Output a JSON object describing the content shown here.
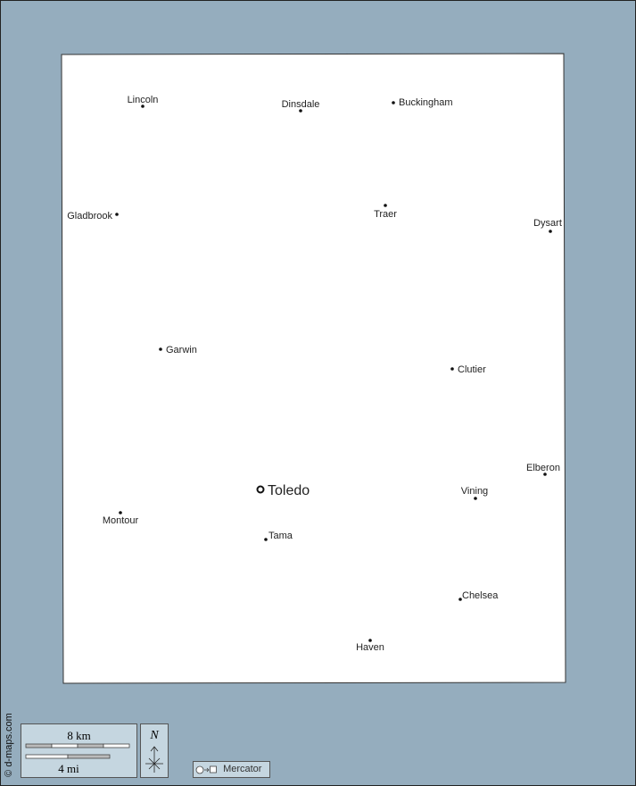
{
  "map": {
    "background_color": "#95adbe",
    "land_color": "#ffffff",
    "capital": "Toledo",
    "places": [
      "Lincoln",
      "Dinsdale",
      "Buckingham",
      "Gladbrook",
      "Traer",
      "Dysart",
      "Garwin",
      "Clutier",
      "Elberon",
      "Vining",
      "Toledo",
      "Montour",
      "Tama",
      "Chelsea",
      "Haven"
    ]
  },
  "credit": "© d-maps.com",
  "scale": {
    "km_label": "8 km",
    "mi_label": "4 mi"
  },
  "north_label": "N",
  "projection": {
    "icon": "circle-to-square-icon",
    "label": "Mercator"
  }
}
